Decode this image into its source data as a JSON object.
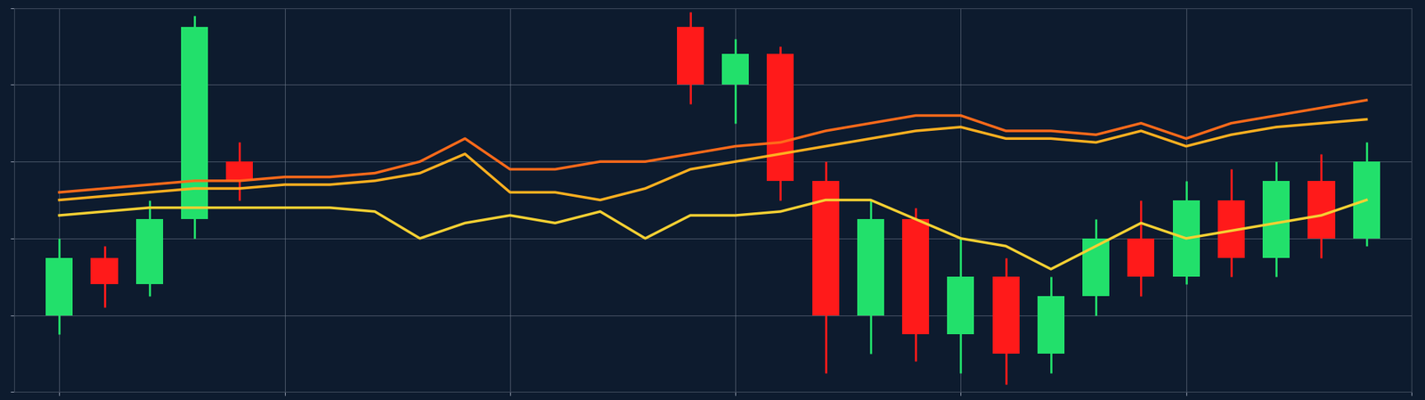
{
  "chart_data": {
    "type": "candlestick",
    "grid": true,
    "tick_labels": false,
    "xlim": [
      -1,
      30
    ],
    "ylim": [
      0,
      100
    ],
    "xticks": [
      0,
      5,
      10,
      15,
      20,
      25,
      30
    ],
    "yticks": [
      0,
      20,
      40,
      60,
      80,
      100
    ],
    "series": [
      {
        "type": "candlestick",
        "x": [
          0,
          1,
          2,
          3,
          4,
          14,
          15,
          16,
          17,
          18,
          19,
          20,
          21,
          22,
          23,
          24,
          25,
          26,
          27,
          28,
          29
        ],
        "open": [
          20,
          35,
          28,
          45,
          60,
          95,
          80,
          88,
          55,
          20,
          45,
          15,
          30,
          10,
          25,
          40,
          30,
          50,
          35,
          55,
          40
        ],
        "close": [
          35,
          28,
          45,
          95,
          55,
          80,
          88,
          55,
          20,
          45,
          15,
          30,
          10,
          25,
          40,
          30,
          50,
          35,
          55,
          40,
          60
        ],
        "high": [
          40,
          38,
          50,
          98,
          65,
          99,
          92,
          90,
          60,
          50,
          48,
          40,
          35,
          30,
          45,
          50,
          55,
          58,
          60,
          62,
          65
        ],
        "low": [
          15,
          22,
          25,
          40,
          50,
          75,
          70,
          50,
          5,
          10,
          8,
          5,
          2,
          5,
          20,
          25,
          28,
          30,
          30,
          35,
          38
        ],
        "colors": [
          "#22e06b",
          "#ff1a1a",
          "#22e06b",
          "#22e06b",
          "#ff1a1a",
          "#ff1a1a",
          "#22e06b",
          "#ff1a1a",
          "#ff1a1a",
          "#22e06b",
          "#ff1a1a",
          "#22e06b",
          "#ff1a1a",
          "#22e06b",
          "#22e06b",
          "#ff1a1a",
          "#22e06b",
          "#ff1a1a",
          "#22e06b",
          "#ff1a1a",
          "#22e06b"
        ]
      },
      {
        "type": "line",
        "color": "#ff6a1a",
        "line_style": "solid",
        "x": [
          0,
          1,
          2,
          3,
          4,
          5,
          6,
          7,
          8,
          9,
          10,
          11,
          12,
          13,
          14,
          15,
          16,
          17,
          18,
          19,
          20,
          21,
          22,
          23,
          24,
          25,
          26,
          27,
          28,
          29
        ],
        "values": [
          52,
          53,
          54,
          55,
          55,
          56,
          56,
          57,
          60,
          66,
          58,
          58,
          60,
          60,
          62,
          64,
          65,
          68,
          70,
          72,
          72,
          68,
          68,
          67,
          70,
          66,
          70,
          72,
          74,
          76
        ]
      },
      {
        "type": "line",
        "color": "#ffb020",
        "line_style": "solid",
        "x": [
          0,
          1,
          2,
          3,
          4,
          5,
          6,
          7,
          8,
          9,
          10,
          11,
          12,
          13,
          14,
          15,
          16,
          17,
          18,
          19,
          20,
          21,
          22,
          23,
          24,
          25,
          26,
          27,
          28,
          29
        ],
        "values": [
          50,
          51,
          52,
          53,
          53,
          54,
          54,
          55,
          57,
          62,
          52,
          52,
          50,
          53,
          58,
          60,
          62,
          64,
          66,
          68,
          69,
          66,
          66,
          65,
          68,
          64,
          67,
          69,
          70,
          71
        ]
      },
      {
        "type": "line",
        "color": "#f5d033",
        "line_style": "solid",
        "x": [
          0,
          1,
          2,
          3,
          4,
          5,
          6,
          7,
          8,
          9,
          10,
          11,
          12,
          13,
          14,
          15,
          16,
          17,
          18,
          19,
          20,
          21,
          22,
          23,
          24,
          25,
          26,
          27,
          28,
          29
        ],
        "values": [
          46,
          47,
          48,
          48,
          48,
          48,
          48,
          47,
          40,
          44,
          46,
          44,
          47,
          40,
          46,
          46,
          47,
          50,
          50,
          45,
          40,
          38,
          32,
          38,
          44,
          40,
          42,
          44,
          46,
          50
        ]
      }
    ]
  }
}
